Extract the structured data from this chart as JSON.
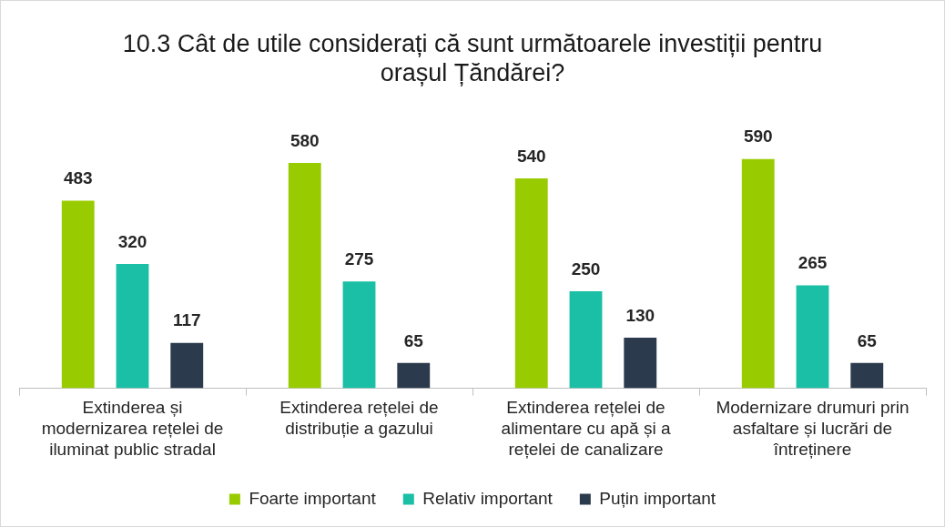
{
  "chart_data": {
    "type": "bar",
    "title": "10.3 Cât de utile considerați că sunt următoarele investiții pentru orașul Țăndărei?",
    "categories": [
      "Extinderea și modernizarea rețelei de iluminat public stradal",
      "Extinderea rețelei de distribuție a gazului",
      "Extinderea rețelei de alimentare cu apă și a rețelei de canalizare",
      "Modernizare drumuri prin asfaltare și lucrări de întreținere"
    ],
    "series": [
      {
        "name": "Foarte important",
        "color": "#99cc00",
        "values": [
          483,
          580,
          540,
          590
        ]
      },
      {
        "name": "Relativ important",
        "color": "#1abfa5",
        "values": [
          320,
          275,
          250,
          265
        ]
      },
      {
        "name": "Puțin important",
        "color": "#2b3a4c",
        "values": [
          117,
          65,
          130,
          65
        ]
      }
    ],
    "tick_labels": "x",
    "data_labels": true,
    "legend": "bottom",
    "grid": false
  }
}
